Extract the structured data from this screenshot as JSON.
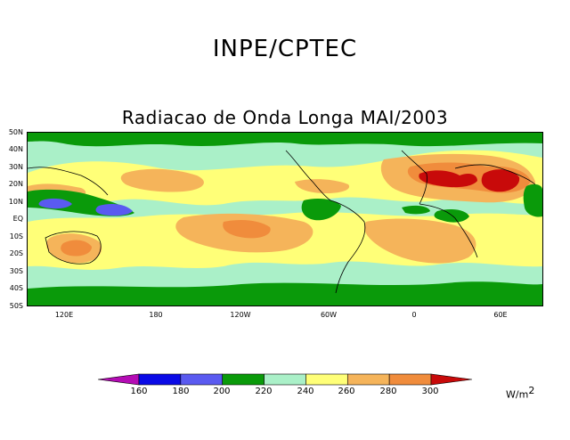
{
  "header": {
    "title": "INPE/CPTEC"
  },
  "map": {
    "title": "Radiacao de Onda Longa MAI/2003",
    "lat_labels": [
      "50N",
      "40N",
      "30N",
      "20N",
      "10N",
      "EQ",
      "10S",
      "20S",
      "30S",
      "40S",
      "50S"
    ],
    "lon_labels": [
      "120E",
      "180",
      "120W",
      "60W",
      "0",
      "60E"
    ],
    "colorbar": {
      "levels": [
        "160",
        "180",
        "200",
        "220",
        "240",
        "260",
        "280",
        "300"
      ],
      "colors": [
        "#b40cb4",
        "#0a0ae6",
        "#5a5af0",
        "#0a9a0a",
        "#aaf0c8",
        "#ffff78",
        "#f5b45a",
        "#f08c3c",
        "#c80a0a"
      ]
    },
    "units": {
      "base": "W/m",
      "exp": "2"
    }
  }
}
